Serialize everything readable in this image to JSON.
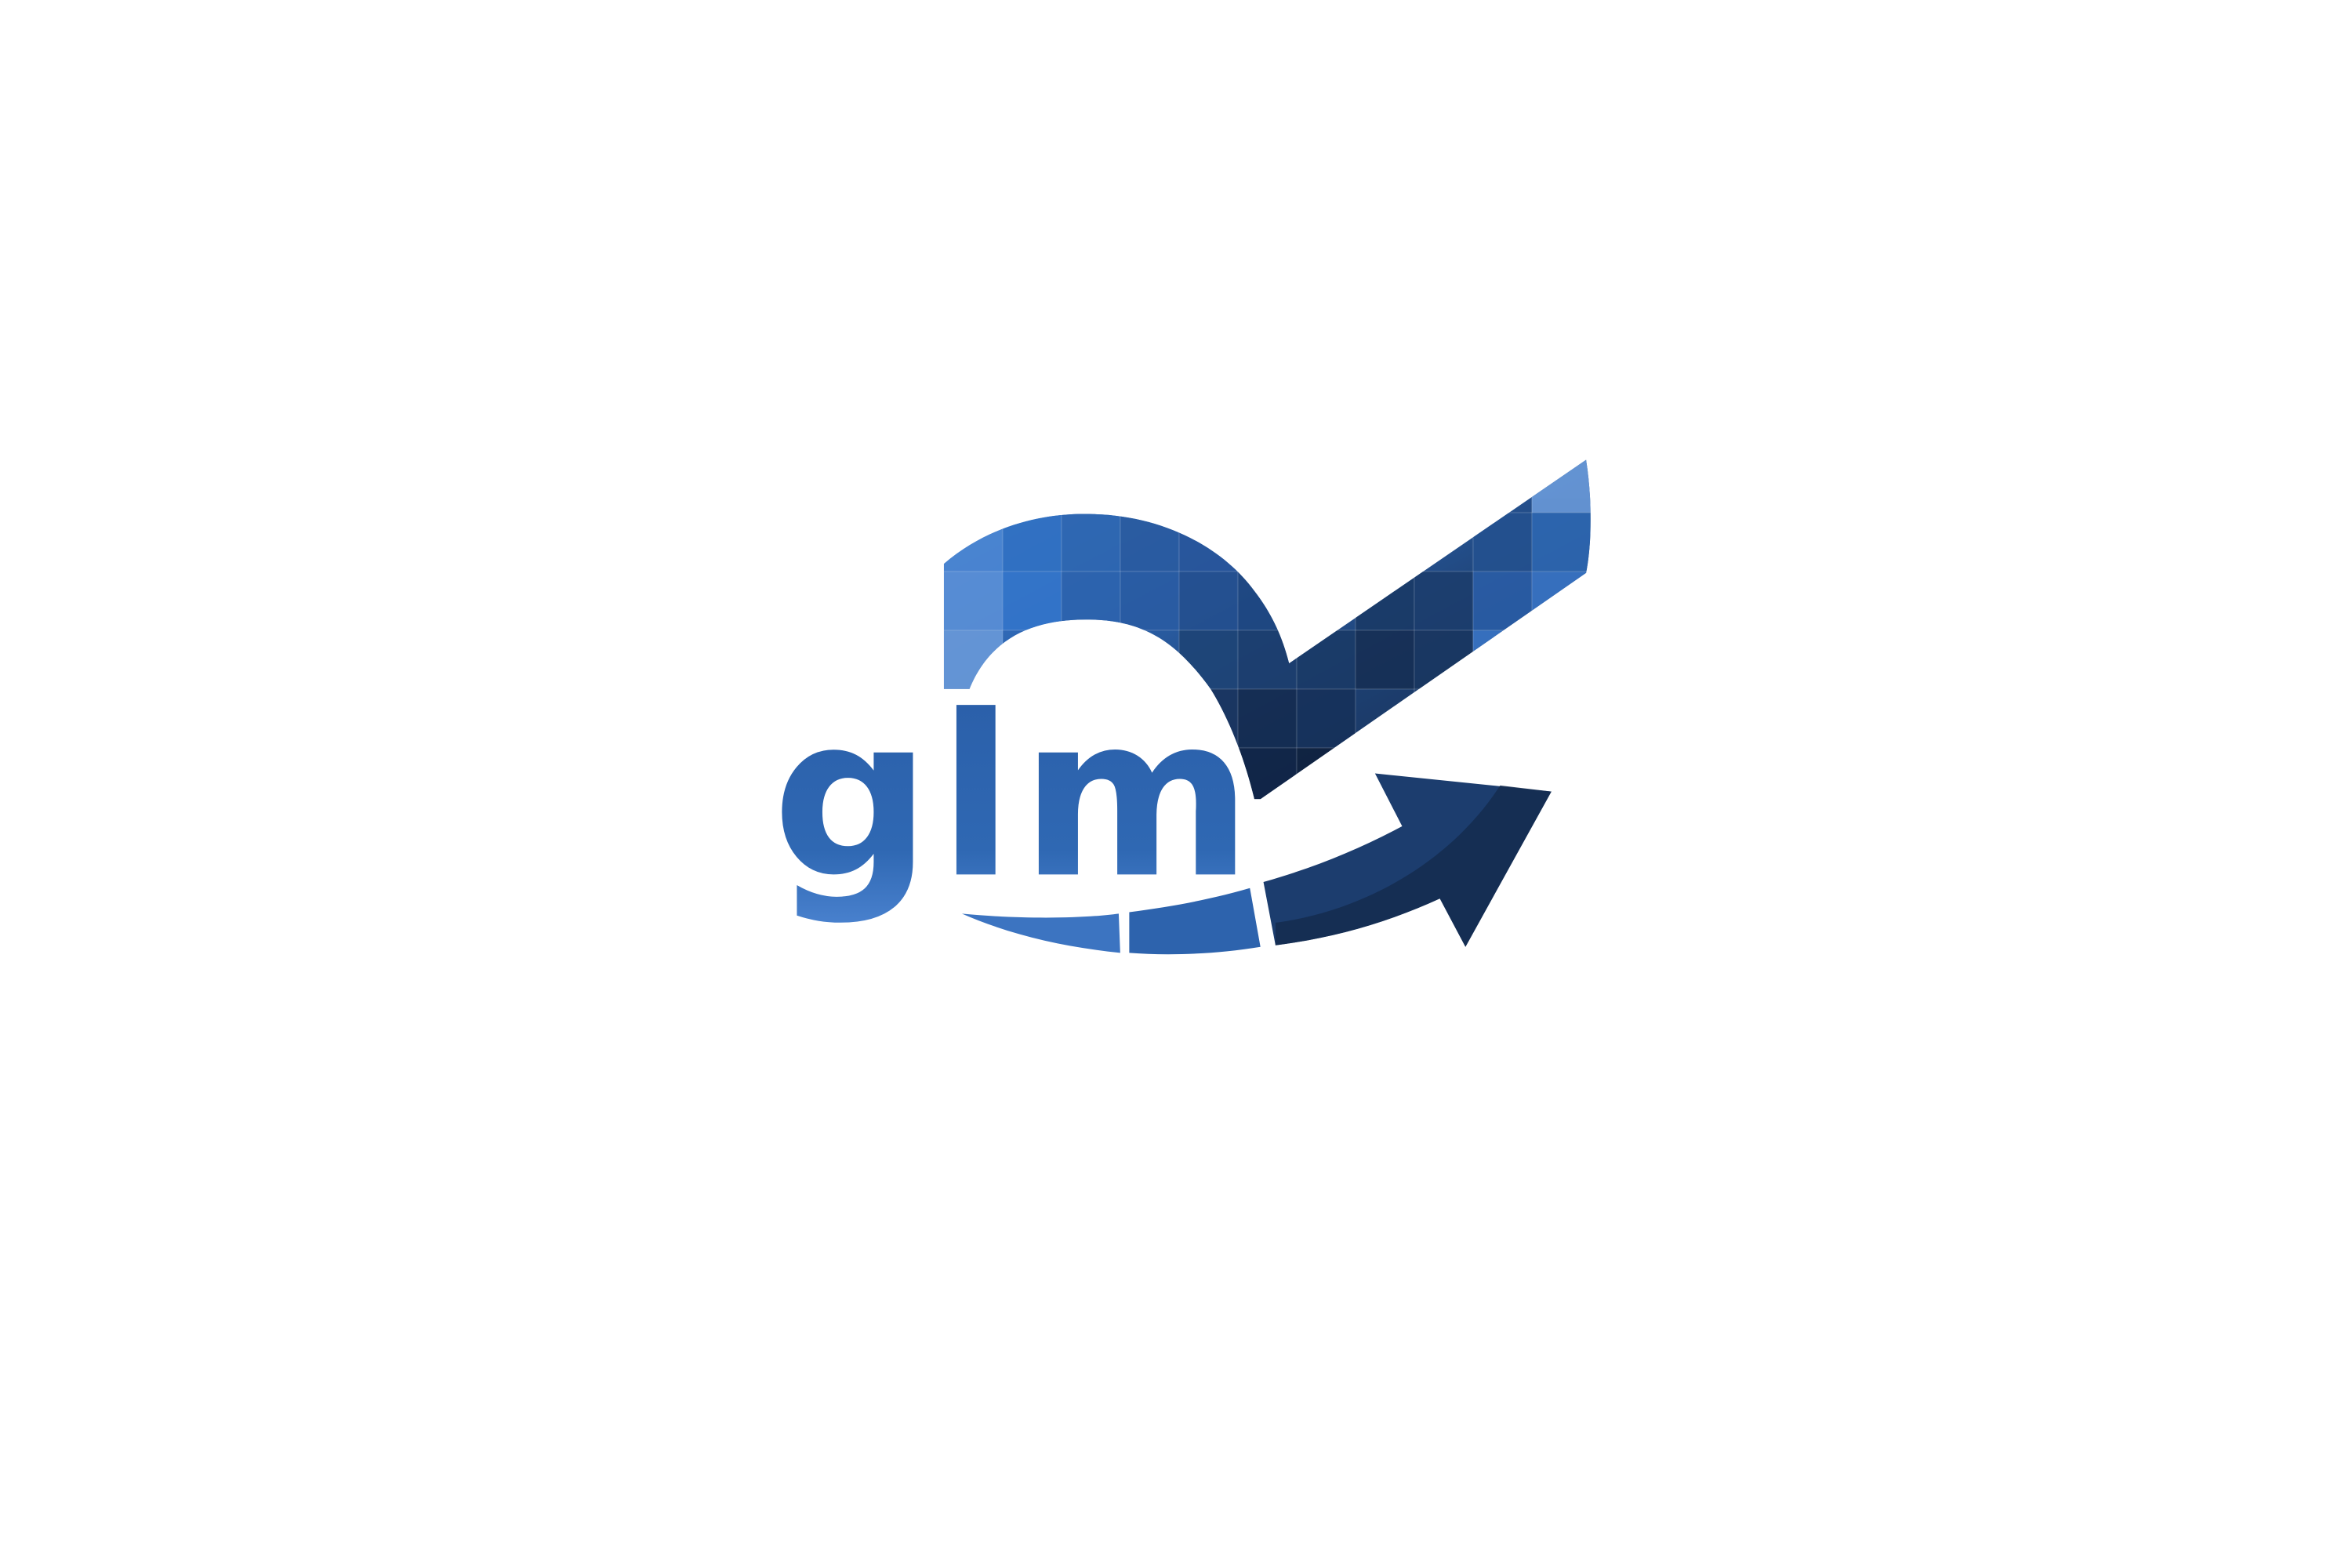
{
  "logo": {
    "text": "glm",
    "colors": {
      "light": "#6a9ad9",
      "mid": "#2e68b2",
      "dark": "#1d3f70",
      "darkest": "#142b4f",
      "background": "#ffffff"
    }
  }
}
